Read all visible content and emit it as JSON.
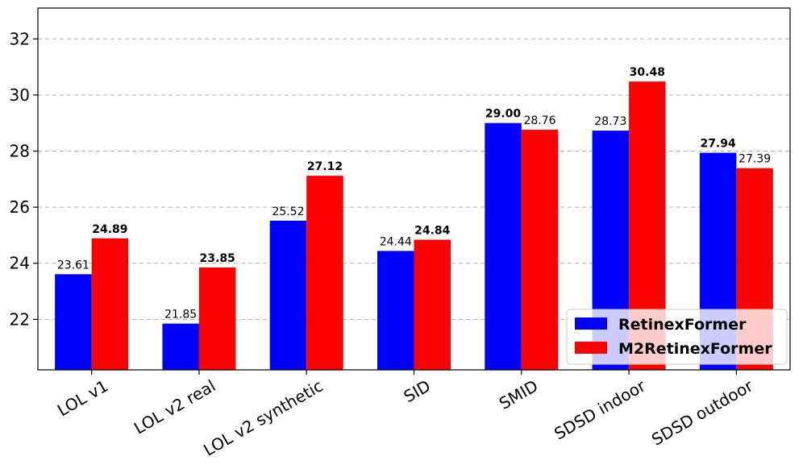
{
  "chart_data": {
    "type": "bar",
    "title": "",
    "xlabel": "",
    "ylabel": "",
    "ylim": [
      20.2,
      33.1
    ],
    "yticks": [
      22,
      24,
      26,
      28,
      30,
      32
    ],
    "grid": "y-dashed",
    "legend_position": "lower-right",
    "categories": [
      "LOL v1",
      "LOL v2 real",
      "LOL v2 synthetic",
      "SID",
      "SMID",
      "SDSD indoor",
      "SDSD outdoor"
    ],
    "series": [
      {
        "name": "RetinexFormer",
        "color": "#0000ff",
        "values": [
          23.61,
          21.85,
          25.52,
          24.44,
          29.0,
          28.73,
          27.94
        ],
        "labels": [
          "23.61",
          "21.85",
          "25.52",
          "24.44",
          "29.00",
          "28.73",
          "27.94"
        ],
        "bold": [
          false,
          false,
          false,
          false,
          true,
          false,
          true
        ]
      },
      {
        "name": "M2RetinexFormer",
        "color": "#ff0000",
        "values": [
          24.89,
          23.85,
          27.12,
          24.84,
          28.76,
          30.48,
          27.39
        ],
        "labels": [
          "24.89",
          "23.85",
          "27.12",
          "24.84",
          "28.76",
          "30.48",
          "27.39"
        ],
        "bold": [
          true,
          true,
          true,
          true,
          false,
          true,
          false
        ]
      }
    ]
  }
}
